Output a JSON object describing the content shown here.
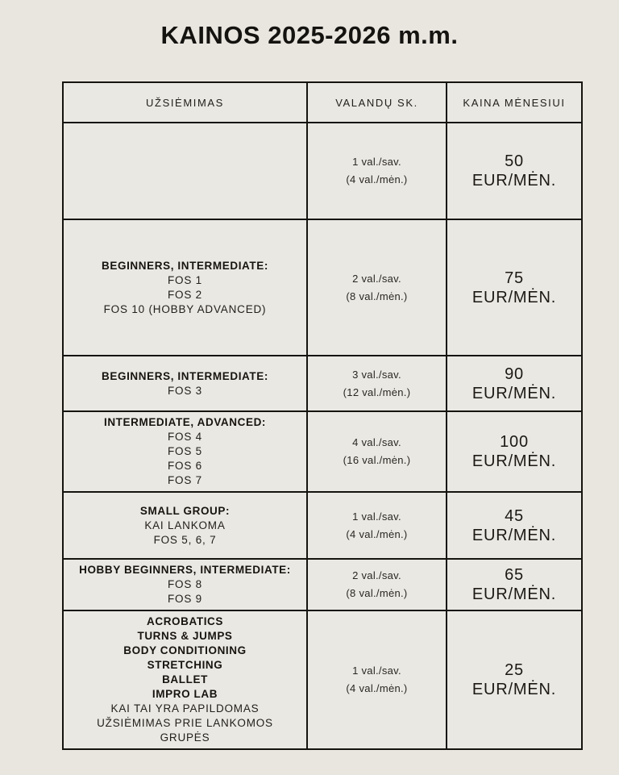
{
  "page": {
    "title": "KAINOS 2025-2026 m.m."
  },
  "colors": {
    "background": "#e9e6e0",
    "table_border": "#16140f",
    "text": "#1c1a17"
  },
  "table": {
    "headers": [
      "UŽSIĖMIMAS",
      "VALANDŲ SK.",
      "KAINA MĖNESIUI"
    ],
    "rows": [
      {
        "activity": [],
        "hours": [
          "1 val./sav.",
          "(4 val./mėn.)"
        ],
        "price": [
          "50",
          "EUR/MĖN."
        ]
      },
      {
        "activity": [
          {
            "t": "BEGINNERS, INTERMEDIATE:",
            "b": true
          },
          {
            "t": "FOS 1",
            "b": false
          },
          {
            "t": "FOS 2",
            "b": false
          },
          {
            "t": "FOS 10 (HOBBY ADVANCED)",
            "b": false
          }
        ],
        "hours": [
          "2 val./sav.",
          "(8 val./mėn.)"
        ],
        "price": [
          "75",
          "EUR/MĖN."
        ]
      },
      {
        "activity": [
          {
            "t": "BEGINNERS, INTERMEDIATE:",
            "b": true
          },
          {
            "t": "FOS 3",
            "b": false
          }
        ],
        "hours": [
          "3 val./sav.",
          "(12 val./mėn.)"
        ],
        "price": [
          "90",
          "EUR/MĖN."
        ]
      },
      {
        "activity": [
          {
            "t": "INTERMEDIATE, ADVANCED:",
            "b": true
          },
          {
            "t": "FOS 4",
            "b": false
          },
          {
            "t": "FOS 5",
            "b": false
          },
          {
            "t": "FOS 6",
            "b": false
          },
          {
            "t": "FOS 7",
            "b": false
          }
        ],
        "hours": [
          "4 val./sav.",
          "(16 val./mėn.)"
        ],
        "price": [
          "100",
          "EUR/MĖN."
        ]
      },
      {
        "activity": [
          {
            "t": "SMALL GROUP:",
            "b": true
          },
          {
            "t": "KAI LANKOMA",
            "b": false
          },
          {
            "t": "FOS 5, 6, 7",
            "b": false
          }
        ],
        "hours": [
          "1 val./sav.",
          "(4 val./mėn.)"
        ],
        "price": [
          "45",
          "EUR/MĖN."
        ]
      },
      {
        "activity": [
          {
            "t": "HOBBY BEGINNERS, INTERMEDIATE:",
            "b": true
          },
          {
            "t": "FOS 8",
            "b": false
          },
          {
            "t": "FOS 9",
            "b": false
          }
        ],
        "hours": [
          "2 val./sav.",
          "(8 val./mėn.)"
        ],
        "price": [
          "65",
          "EUR/MĖN."
        ]
      },
      {
        "activity": [
          {
            "t": "ACROBATICS",
            "b": true
          },
          {
            "t": "TURNS & JUMPS",
            "b": true
          },
          {
            "t": "BODY CONDITIONING",
            "b": true
          },
          {
            "t": "STRETCHING",
            "b": true
          },
          {
            "t": "BALLET",
            "b": true
          },
          {
            "t": "IMPRO LAB",
            "b": true
          },
          {
            "t": "KAI TAI YRA PAPILDOMAS",
            "b": false
          },
          {
            "t": "UŽSIĖMIMAS PRIE LANKOMOS",
            "b": false
          },
          {
            "t": "GRUPĖS",
            "b": false
          }
        ],
        "hours": [
          "1 val./sav.",
          "(4 val./mėn.)"
        ],
        "price": [
          "25",
          "EUR/MĖN."
        ]
      }
    ]
  }
}
